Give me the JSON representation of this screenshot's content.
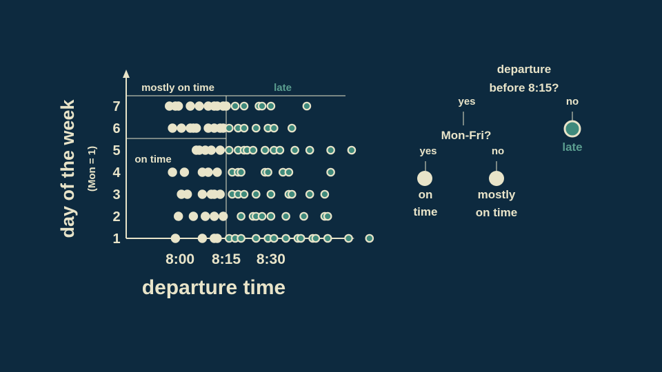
{
  "chart_data": {
    "type": "scatter",
    "xlabel": "departure time",
    "ylabel": "day of the week",
    "ylabel_sub": "(Mon = 1)",
    "x_ticks": [
      "8:00",
      "8:15",
      "8:30"
    ],
    "y_ticks": [
      "1",
      "2",
      "3",
      "4",
      "5",
      "6",
      "7"
    ],
    "threshold": "8:15",
    "region_labels": {
      "mostly_on_time": "mostly on time",
      "late": "late",
      "on_time": "on time"
    },
    "colors": {
      "on_time": "#e8e4c9",
      "late": "#3f8a7c",
      "background": "#0d2a3f"
    },
    "points": [
      {
        "day": 1,
        "minutes": [
          -17,
          -8,
          -4,
          -3,
          1,
          3,
          5,
          10,
          14,
          16,
          20,
          24,
          25,
          29,
          30,
          34,
          41,
          48
        ]
      },
      {
        "day": 2,
        "minutes": [
          -16,
          -11,
          -7,
          -4,
          -1,
          5,
          9,
          10,
          12,
          15,
          20,
          26,
          33,
          34
        ]
      },
      {
        "day": 3,
        "minutes": [
          -15,
          -13,
          -8,
          -5,
          -4,
          -2,
          2,
          4,
          6,
          10,
          15,
          21,
          22,
          28,
          33
        ]
      },
      {
        "day": 4,
        "minutes": [
          -18,
          -14,
          -8,
          -6,
          -3,
          2,
          4,
          5,
          13,
          14,
          19,
          21,
          35
        ]
      },
      {
        "day": 5,
        "minutes": [
          -10,
          -9,
          -7,
          -5,
          -2,
          1,
          4,
          6,
          7,
          9,
          13,
          16,
          18,
          23,
          28,
          35,
          42
        ]
      },
      {
        "day": 6,
        "minutes": [
          -18,
          -15,
          -12,
          -11,
          -10,
          -6,
          -4,
          -2,
          -1,
          1,
          4,
          6,
          10,
          14,
          16,
          22
        ]
      },
      {
        "day": 7,
        "minutes": [
          -19,
          -17,
          -16,
          -12,
          -9,
          -6,
          -4,
          -3,
          -1,
          0,
          3,
          6,
          11,
          12,
          15,
          27
        ]
      }
    ]
  },
  "tree": {
    "root_question_line1": "departure",
    "root_question_line2": "before 8:15?",
    "yes_label": "yes",
    "no_label": "no",
    "sub_question": "Mon-Fri?",
    "sub_yes_label": "yes",
    "sub_no_label": "no",
    "leaf_late": "late",
    "leaf_on_time_line1": "on",
    "leaf_on_time_line2": "time",
    "leaf_mostly_line1": "mostly",
    "leaf_mostly_line2": "on time"
  }
}
